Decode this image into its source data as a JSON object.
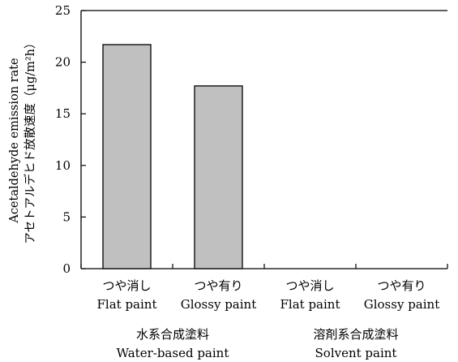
{
  "chart_data": {
    "type": "bar",
    "categories": [
      {
        "ja": "つや消し",
        "en": "Flat paint"
      },
      {
        "ja": "つや有り",
        "en": "Glossy paint"
      },
      {
        "ja": "つや消し",
        "en": "Flat paint"
      },
      {
        "ja": "つや有り",
        "en": "Glossy paint"
      }
    ],
    "groups": [
      {
        "ja": "水系合成塗料",
        "en": "Water-based paint"
      },
      {
        "ja": "溶剤系合成塗料",
        "en": "Solvent paint"
      }
    ],
    "values": [
      21.7,
      17.7,
      0,
      0
    ],
    "ylabel_en": "Acetaldehyde emission rate",
    "ylabel_ja": "アセトアルデヒド放散速度（μg/m²h）",
    "ylim": [
      0,
      25
    ],
    "yticks": [
      0,
      5,
      10,
      15,
      20,
      25
    ],
    "grid": false,
    "colors": {
      "bar": "#c0c0c0",
      "stroke": "#000000"
    }
  }
}
